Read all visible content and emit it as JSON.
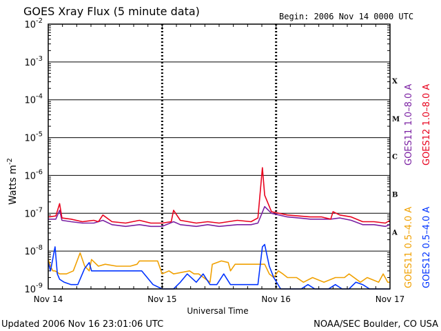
{
  "colors": {
    "background": "#ffffff",
    "axes": "#000000",
    "goes11_long": "#7a1fa2",
    "goes12_long": "#e8001c",
    "goes11_short": "#f0a000",
    "goes12_short": "#0033ff"
  },
  "chart_data": {
    "type": "line",
    "title": "GOES Xray Flux (5 minute data)",
    "begin_label": "Begin:  2006 Nov 14 0000 UTC",
    "xlabel": "Universal Time",
    "ylabel": "Watts m",
    "ylabel_exponent": "-2",
    "y_scale": "log",
    "ylim": [
      1e-09,
      0.01
    ],
    "xlim": [
      "2006-11-14 00:00",
      "2006-11-17 00:00"
    ],
    "x_ticks": [
      {
        "label": "Nov 14",
        "x": "2006-11-14 00:00"
      },
      {
        "label": "Nov 15",
        "x": "2006-11-15 00:00"
      },
      {
        "label": "Nov 16",
        "x": "2006-11-16 00:00"
      },
      {
        "label": "Nov 17",
        "x": "2006-11-17 00:00"
      }
    ],
    "y_ticks": [
      {
        "base": "10",
        "exp": "-2",
        "value": 0.01
      },
      {
        "base": "10",
        "exp": "-3",
        "value": 0.001
      },
      {
        "base": "10",
        "exp": "-4",
        "value": 0.0001
      },
      {
        "base": "10",
        "exp": "-5",
        "value": 1e-05
      },
      {
        "base": "10",
        "exp": "-6",
        "value": 1e-06
      },
      {
        "base": "10",
        "exp": "-7",
        "value": 1e-07
      },
      {
        "base": "10",
        "exp": "-8",
        "value": 1e-08
      },
      {
        "base": "10",
        "exp": "-9",
        "value": 1e-09
      }
    ],
    "flare_classes": [
      {
        "label": "X",
        "value": 0.00032
      },
      {
        "label": "M",
        "value": 3.2e-05
      },
      {
        "label": "C",
        "value": 3.2e-06
      },
      {
        "label": "B",
        "value": 3.2e-07
      },
      {
        "label": "A",
        "value": 3.2e-08
      }
    ],
    "legend_top": [
      {
        "text": "GOES11 1.0–8.0 A",
        "color": "#7a1fa2"
      },
      {
        "text": "GOES12 1.0–8.0 A",
        "color": "#e8001c"
      }
    ],
    "legend_bottom": [
      {
        "text": "GOES11 0.5–4.0 A",
        "color": "#f0a000"
      },
      {
        "text": "GOES12 0.5–4.0 A",
        "color": "#0033ff"
      }
    ],
    "series": [
      {
        "name": "GOES12 1.0-8.0 A",
        "color": "#e8001c",
        "x": [
          "2006-11-14 00:00",
          "2006-11-14 01:36",
          "2006-11-14 02:24",
          "2006-11-14 02:53",
          "2006-11-14 04:48",
          "2006-11-14 07:12",
          "2006-11-14 09:36",
          "2006-11-14 10:34",
          "2006-11-14 11:31",
          "2006-11-14 13:26",
          "2006-11-14 16:19",
          "2006-11-14 19:12",
          "2006-11-14 21:36",
          "2006-11-15 00:00",
          "2006-11-15 01:55",
          "2006-11-15 02:24",
          "2006-11-15 03:50",
          "2006-11-15 07:12",
          "2006-11-15 09:36",
          "2006-11-15 12:00",
          "2006-11-15 15:50",
          "2006-11-15 18:43",
          "2006-11-15 20:10",
          "2006-11-15 21:07",
          "2006-11-15 21:36",
          "2006-11-15 23:02",
          "2006-11-16 02:24",
          "2006-11-16 04:48",
          "2006-11-16 07:12",
          "2006-11-16 09:36",
          "2006-11-16 11:31",
          "2006-11-16 12:00",
          "2006-11-16 13:26",
          "2006-11-16 15:50",
          "2006-11-16 18:14",
          "2006-11-16 20:38",
          "2006-11-16 23:02",
          "2006-11-17 00:00"
        ],
        "values": [
          8e-08,
          8.5e-08,
          1.8e-07,
          7.5e-08,
          7e-08,
          6e-08,
          6.5e-08,
          6e-08,
          9e-08,
          6e-08,
          5.5e-08,
          6.5e-08,
          5.5e-08,
          5.5e-08,
          6e-08,
          1.2e-07,
          6.5e-08,
          5.5e-08,
          6e-08,
          5.5e-08,
          6.5e-08,
          6e-08,
          7.5e-08,
          1.6e-06,
          3e-07,
          1.1e-07,
          9e-08,
          8.5e-08,
          8e-08,
          8e-08,
          7e-08,
          1.1e-07,
          9e-08,
          8e-08,
          6e-08,
          6e-08,
          5.5e-08,
          6.5e-08
        ]
      },
      {
        "name": "GOES11 1.0-8.0 A",
        "color": "#7a1fa2",
        "x": [
          "2006-11-14 00:00",
          "2006-11-14 01:36",
          "2006-11-14 02:24",
          "2006-11-14 02:53",
          "2006-11-14 04:48",
          "2006-11-14 07:12",
          "2006-11-14 09:36",
          "2006-11-14 11:31",
          "2006-11-14 13:26",
          "2006-11-14 16:19",
          "2006-11-14 19:12",
          "2006-11-14 21:36",
          "2006-11-15 00:00",
          "2006-11-15 02:24",
          "2006-11-15 03:50",
          "2006-11-15 07:12",
          "2006-11-15 09:36",
          "2006-11-15 12:00",
          "2006-11-15 15:50",
          "2006-11-15 18:43",
          "2006-11-15 20:10",
          "2006-11-15 21:36",
          "2006-11-15 23:02",
          "2006-11-16 02:24",
          "2006-11-16 04:48",
          "2006-11-16 07:12",
          "2006-11-16 09:36",
          "2006-11-16 11:31",
          "2006-11-16 13:26",
          "2006-11-16 15:50",
          "2006-11-16 18:14",
          "2006-11-16 20:38",
          "2006-11-16 23:02",
          "2006-11-17 00:00"
        ],
        "values": [
          7e-08,
          7e-08,
          1.2e-07,
          6.5e-08,
          6e-08,
          5.5e-08,
          5.5e-08,
          6.5e-08,
          5e-08,
          4.5e-08,
          5e-08,
          4.5e-08,
          4.5e-08,
          6e-08,
          5e-08,
          4.5e-08,
          5e-08,
          4.5e-08,
          5e-08,
          5e-08,
          5.5e-08,
          1.5e-07,
          1e-07,
          8e-08,
          7.5e-08,
          7e-08,
          7e-08,
          7e-08,
          7.5e-08,
          6.5e-08,
          5e-08,
          5e-08,
          4.5e-08,
          5e-08
        ]
      },
      {
        "name": "GOES11 0.5-4.0 A",
        "color": "#f0a000",
        "x": [
          "2006-11-14 00:00",
          "2006-11-14 00:29",
          "2006-11-14 00:58",
          "2006-11-14 01:26",
          "2006-11-14 02:24",
          "2006-11-14 03:50",
          "2006-11-14 05:17",
          "2006-11-14 06:43",
          "2006-11-14 07:41",
          "2006-11-14 08:38",
          "2006-11-14 09:07",
          "2006-11-14 10:34",
          "2006-11-14 12:00",
          "2006-11-14 14:24",
          "2006-11-14 15:50",
          "2006-11-14 17:17",
          "2006-11-14 18:43",
          "2006-11-14 19:12",
          "2006-11-14 21:36",
          "2006-11-14 23:02",
          "2006-11-15 00:00",
          "2006-11-15 01:26",
          "2006-11-15 02:24",
          "2006-11-15 05:46",
          "2006-11-15 06:43",
          "2006-11-15 07:41",
          "2006-11-15 10:05",
          "2006-11-15 10:34",
          "2006-11-15 12:29",
          "2006-11-15 13:55",
          "2006-11-15 14:24",
          "2006-11-15 15:22",
          "2006-11-15 16:19",
          "2006-11-15 17:46",
          "2006-11-15 18:43",
          "2006-11-15 21:36",
          "2006-11-15 22:34",
          "2006-11-15 23:31",
          "2006-11-16 00:29",
          "2006-11-16 01:26",
          "2006-11-16 02:24",
          "2006-11-16 04:19",
          "2006-11-16 05:46",
          "2006-11-16 07:41",
          "2006-11-16 10:05",
          "2006-11-16 12:29",
          "2006-11-16 14:24",
          "2006-11-16 15:22",
          "2006-11-16 17:46",
          "2006-11-16 19:12",
          "2006-11-16 21:36",
          "2006-11-16 22:34",
          "2006-11-16 23:31",
          "2006-11-17 00:00"
        ],
        "values": [
          6e-09,
          4e-09,
          3e-09,
          3e-09,
          2.5e-09,
          2.5e-09,
          3e-09,
          9e-09,
          4e-09,
          3e-09,
          6e-09,
          4e-09,
          4.5e-09,
          4e-09,
          4e-09,
          4e-09,
          4.5e-09,
          5.5e-09,
          5.5e-09,
          5.5e-09,
          2.5e-09,
          3e-09,
          2.5e-09,
          3e-09,
          2.5e-09,
          2.5e-09,
          1.5e-09,
          4.5e-09,
          5.5e-09,
          5e-09,
          3e-09,
          4.5e-09,
          4.5e-09,
          4.5e-09,
          4.5e-09,
          4.5e-09,
          2.5e-09,
          2e-09,
          3e-09,
          2.5e-09,
          2e-09,
          2e-09,
          1.5e-09,
          2e-09,
          1.5e-09,
          2e-09,
          2e-09,
          2.5e-09,
          1.5e-09,
          2e-09,
          1.5e-09,
          2.5e-09,
          1.5e-09,
          1.5e-09
        ]
      },
      {
        "name": "GOES12 0.5-4.0 A",
        "color": "#0033ff",
        "x": [
          "2006-11-14 00:00",
          "2006-11-14 00:29",
          "2006-11-14 01:26",
          "2006-11-14 01:55",
          "2006-11-14 02:24",
          "2006-11-14 03:22",
          "2006-11-14 04:48",
          "2006-11-14 06:14",
          "2006-11-14 07:41",
          "2006-11-14 08:38",
          "2006-11-14 09:07",
          "2006-11-14 12:00",
          "2006-11-14 14:24",
          "2006-11-14 16:48",
          "2006-11-14 18:14",
          "2006-11-14 19:41",
          "2006-11-14 22:05",
          "2006-11-15 00:00",
          "2006-11-15 01:26",
          "2006-11-15 02:24",
          "2006-11-15 03:50",
          "2006-11-15 05:17",
          "2006-11-15 07:12",
          "2006-11-15 08:38",
          "2006-11-15 10:05",
          "2006-11-15 11:31",
          "2006-11-15 12:58",
          "2006-11-15 14:24",
          "2006-11-15 15:50",
          "2006-11-15 17:17",
          "2006-11-15 18:43",
          "2006-11-15 20:10",
          "2006-11-15 21:07",
          "2006-11-15 21:36",
          "2006-11-15 22:34",
          "2006-11-15 23:31",
          "2006-11-16 00:58",
          "2006-11-16 02:24",
          "2006-11-16 03:50",
          "2006-11-16 05:17",
          "2006-11-16 06:43",
          "2006-11-16 08:10",
          "2006-11-16 09:36",
          "2006-11-16 11:02",
          "2006-11-16 12:29",
          "2006-11-16 13:55",
          "2006-11-16 15:22",
          "2006-11-16 16:48",
          "2006-11-16 18:14",
          "2006-11-16 19:41",
          "2006-11-16 21:07",
          "2006-11-16 22:34",
          "2006-11-16 23:31",
          "2006-11-17 00:00"
        ],
        "values": [
          5e-09,
          3e-09,
          1.3e-08,
          2.5e-09,
          1.8e-09,
          1.5e-09,
          1.3e-09,
          1.3e-09,
          3.5e-09,
          5e-09,
          3e-09,
          3e-09,
          3e-09,
          3e-09,
          3e-09,
          3e-09,
          1.3e-09,
          1e-09,
          1e-09,
          1e-09,
          1.5e-09,
          2.5e-09,
          1.5e-09,
          2.5e-09,
          1.3e-09,
          1.3e-09,
          2.5e-09,
          1.3e-09,
          1.3e-09,
          1.3e-09,
          1.3e-09,
          1.3e-09,
          1.3e-08,
          1.5e-08,
          4e-09,
          2e-09,
          1e-09,
          1e-09,
          1e-09,
          1e-09,
          1.3e-09,
          1e-09,
          1e-09,
          1e-09,
          1.3e-09,
          1e-09,
          1e-09,
          1.5e-09,
          1.3e-09,
          1e-09,
          1e-09,
          1e-09,
          1e-09,
          1e-09
        ]
      }
    ]
  },
  "footer": {
    "updated": "Updated 2006 Nov 16 23:01:06 UTC",
    "credit": "NOAA/SEC Boulder, CO USA"
  }
}
